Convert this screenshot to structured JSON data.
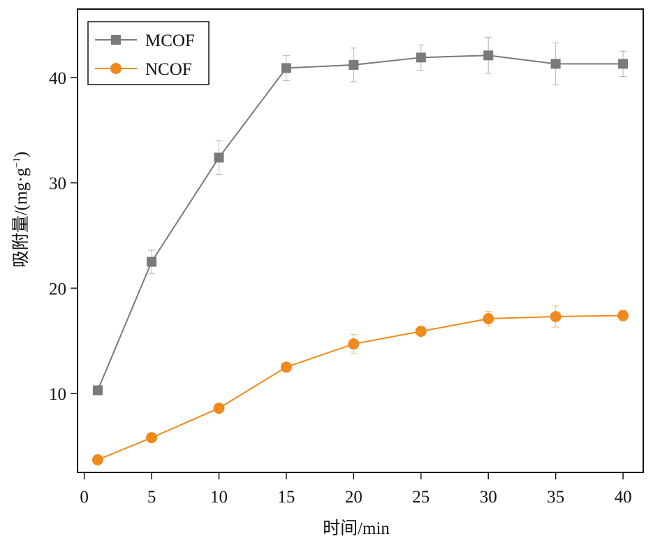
{
  "chart_data": {
    "type": "line",
    "title": "",
    "xlabel": "时间/min",
    "ylabel_main": "吸附量/(mg·g",
    "ylabel_sup": "−1",
    "ylabel_close": ")",
    "xlim": [
      -0.5,
      41.5
    ],
    "ylim": [
      2.5,
      46.5
    ],
    "xticks": [
      0,
      5,
      10,
      15,
      20,
      25,
      30,
      35,
      40
    ],
    "yticks": [
      10,
      20,
      30,
      40
    ],
    "grid": false,
    "legend_position": "top-left",
    "x": [
      1,
      5,
      10,
      15,
      20,
      25,
      30,
      35,
      40
    ],
    "series": [
      {
        "name": "MCOF",
        "marker": "square",
        "color": "#7a7a7a",
        "values": [
          10.3,
          22.5,
          32.4,
          40.9,
          41.2,
          41.9,
          42.1,
          41.3,
          41.3
        ],
        "errors": [
          0.4,
          1.1,
          1.6,
          1.2,
          1.6,
          1.2,
          1.7,
          2.0,
          1.2
        ]
      },
      {
        "name": "NCOF",
        "marker": "circle",
        "color": "#f08a1c",
        "values": [
          3.7,
          5.8,
          8.6,
          12.5,
          14.7,
          15.9,
          17.1,
          17.3,
          17.4
        ],
        "errors": [
          0.2,
          0.3,
          0.4,
          0.4,
          0.9,
          0.4,
          0.7,
          1.0,
          0.5
        ]
      }
    ]
  }
}
